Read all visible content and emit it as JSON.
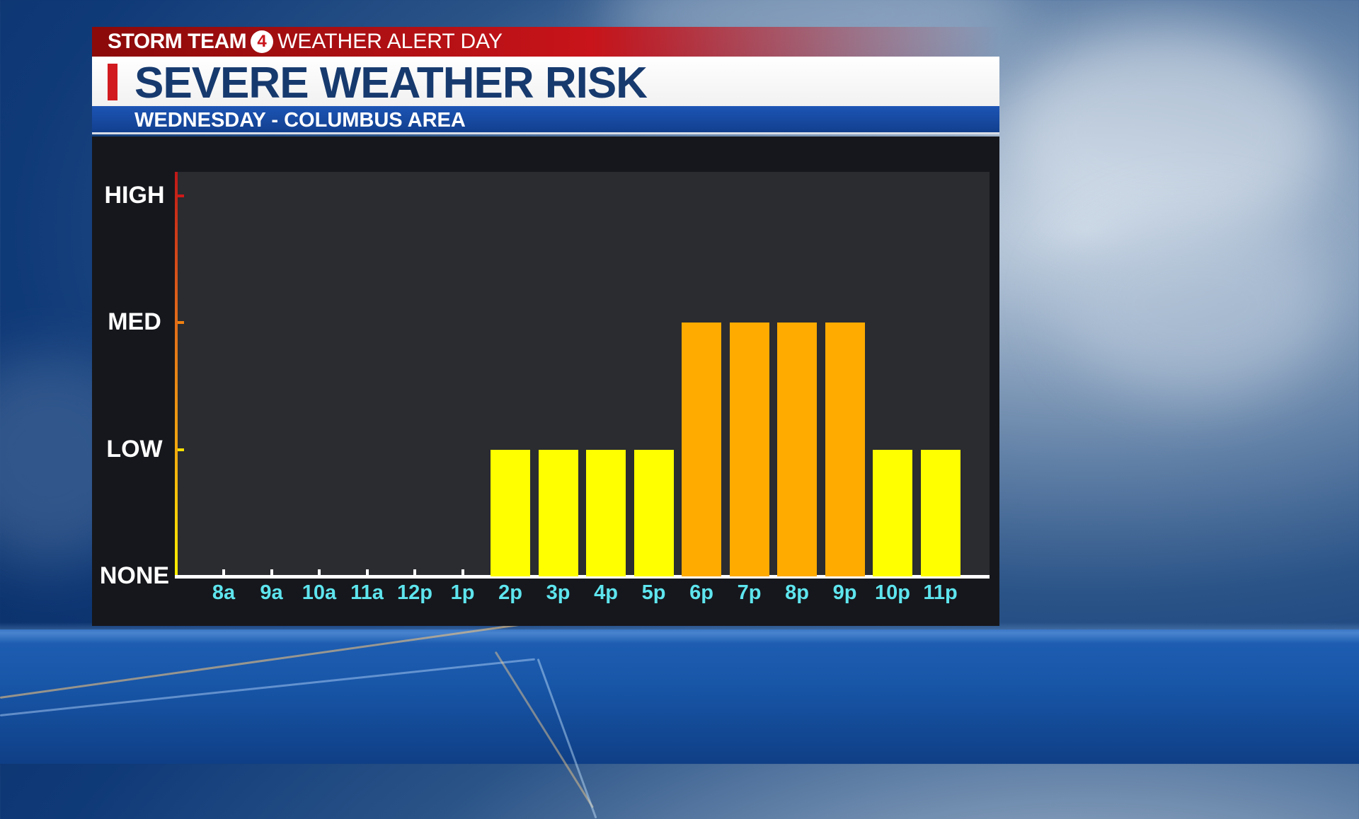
{
  "header": {
    "brand": "STORM TEAM",
    "brand_number": "4",
    "alert": "WEATHER ALERT DAY"
  },
  "title": "SEVERE WEATHER RISK",
  "subtitle": "WEDNESDAY - COLUMBUS AREA",
  "chart_data": {
    "type": "bar",
    "title": "SEVERE WEATHER RISK",
    "subtitle": "WEDNESDAY - COLUMBUS AREA",
    "xlabel": "",
    "ylabel": "",
    "categories": [
      "8a",
      "9a",
      "10a",
      "11a",
      "12p",
      "1p",
      "2p",
      "3p",
      "4p",
      "5p",
      "6p",
      "7p",
      "8p",
      "9p",
      "10p",
      "11p"
    ],
    "values": [
      0,
      0,
      0,
      0,
      0,
      0,
      1,
      1,
      1,
      1,
      2,
      2,
      2,
      2,
      1,
      1
    ],
    "y_levels": [
      "NONE",
      "LOW",
      "MED",
      "HIGH"
    ],
    "ylim": [
      0,
      3
    ],
    "level_colors": {
      "1": "#ffff00",
      "2": "#ffab00",
      "3": "#d11a1f"
    },
    "grid": false,
    "legend": "none"
  }
}
